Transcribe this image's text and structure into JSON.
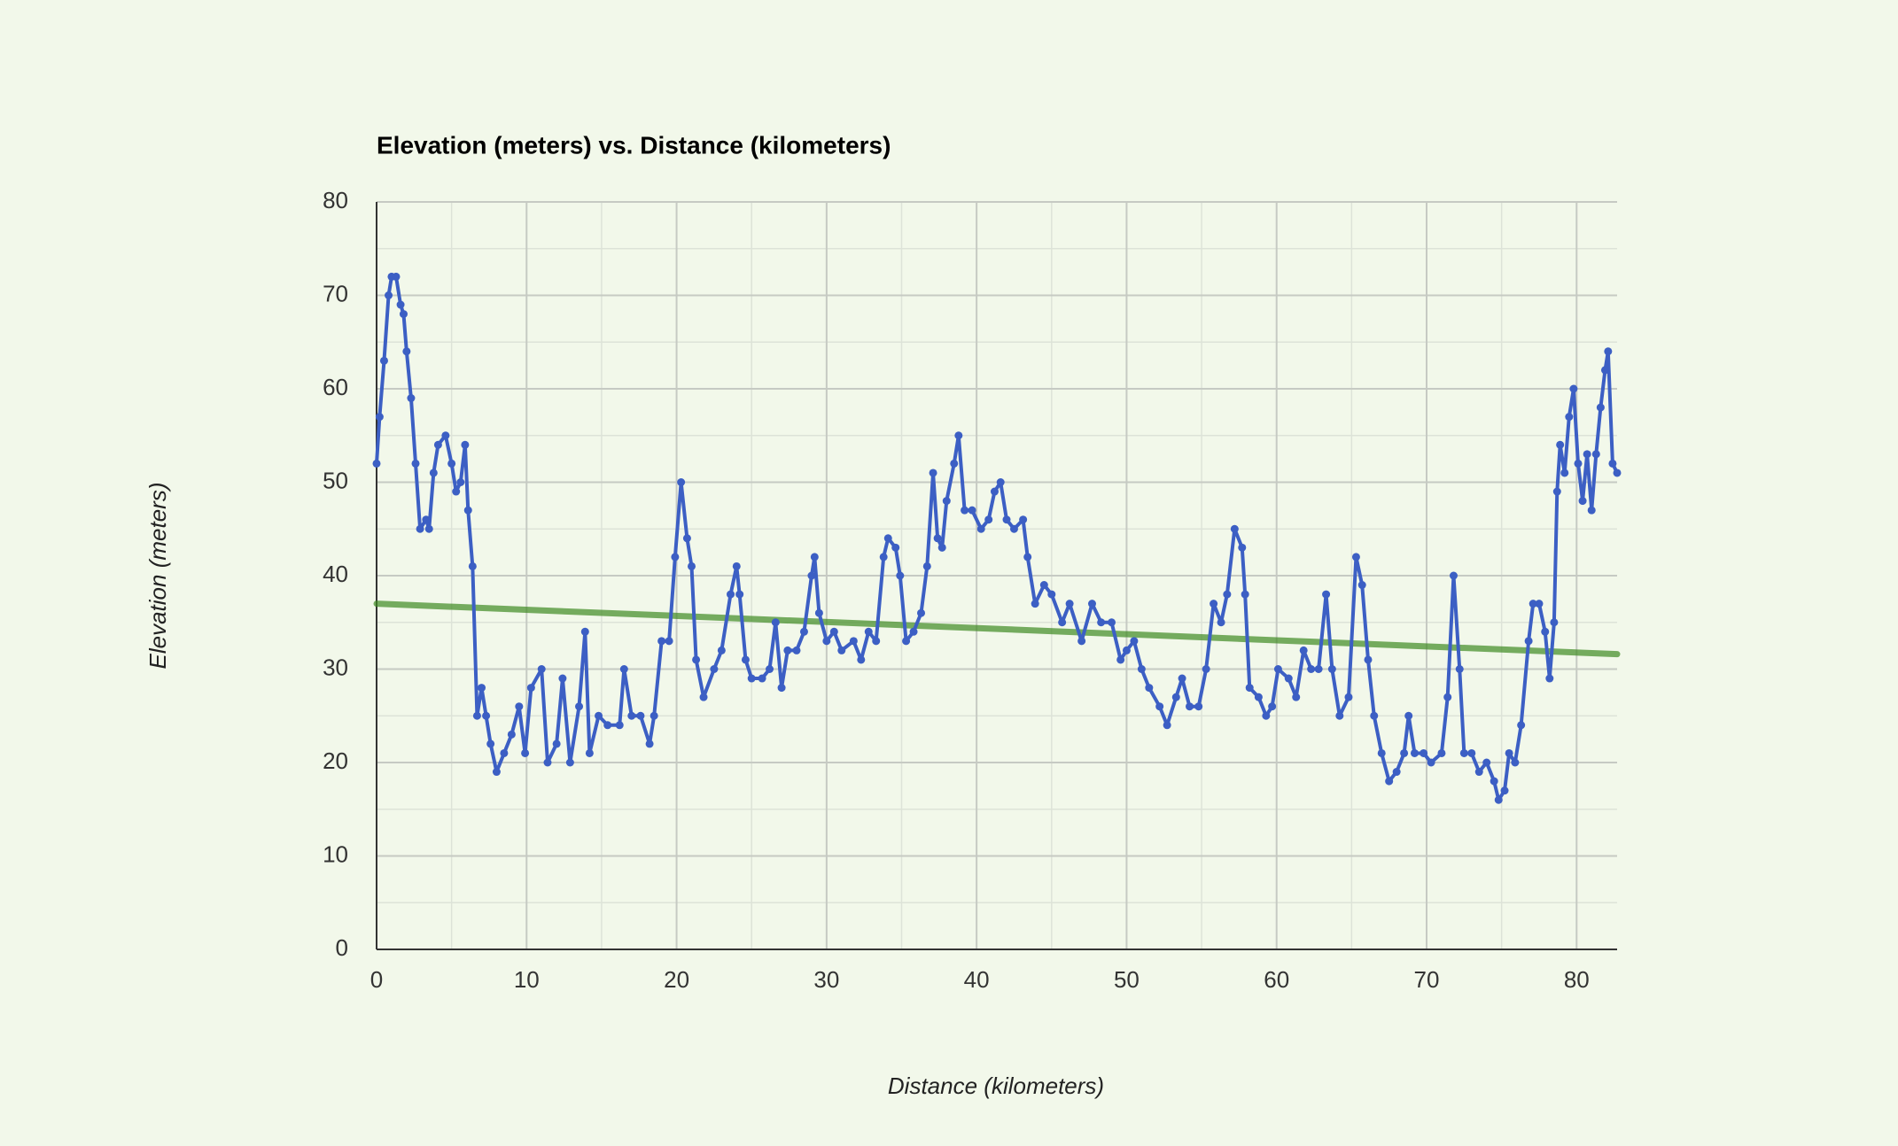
{
  "chart_data": {
    "type": "line",
    "title": "Elevation (meters) vs. Distance (kilometers)",
    "xlabel": "Distance (kilometers)",
    "ylabel": "Elevation (meters)",
    "xlim": [
      0,
      82.7
    ],
    "ylim": [
      0,
      80
    ],
    "xticks": [
      0,
      10,
      20,
      30,
      40,
      50,
      60,
      70,
      80
    ],
    "yticks": [
      0,
      10,
      20,
      30,
      40,
      50,
      60,
      70,
      80
    ],
    "x_minor_ticks": [
      5,
      15,
      25,
      35,
      45,
      55,
      65,
      75
    ],
    "y_minor_ticks": [
      5,
      15,
      25,
      35,
      45,
      55,
      65,
      75
    ],
    "grid": true,
    "series": [
      {
        "color": "#3c5fc4",
        "markers": true,
        "x": [
          0,
          0.2,
          0.5,
          0.8,
          1.0,
          1.3,
          1.6,
          1.8,
          2.0,
          2.3,
          2.6,
          2.9,
          3.3,
          3.5,
          3.8,
          4.1,
          4.6,
          5.0,
          5.3,
          5.6,
          5.9,
          6.1,
          6.4,
          6.7,
          7.0,
          7.3,
          7.6,
          8.0,
          8.5,
          9.0,
          9.5,
          9.9,
          10.3,
          11.0,
          11.4,
          12.0,
          12.4,
          12.9,
          13.5,
          13.9,
          14.2,
          14.8,
          15.4,
          16.2,
          16.5,
          17.0,
          17.6,
          18.2,
          18.5,
          19.0,
          19.5,
          19.9,
          20.3,
          20.7,
          21.0,
          21.3,
          21.8,
          22.5,
          23.0,
          23.6,
          24.0,
          24.2,
          24.6,
          25.0,
          25.7,
          26.2,
          26.6,
          27.0,
          27.4,
          28.0,
          28.5,
          29.0,
          29.2,
          29.5,
          30.0,
          30.5,
          31.0,
          31.8,
          32.3,
          32.8,
          33.3,
          33.8,
          34.1,
          34.6,
          34.9,
          35.3,
          35.8,
          36.3,
          36.7,
          37.1,
          37.4,
          37.7,
          38.0,
          38.5,
          38.8,
          39.2,
          39.7,
          40.3,
          40.8,
          41.2,
          41.6,
          42.0,
          42.5,
          43.1,
          43.4,
          43.9,
          44.5,
          45.0,
          45.7,
          46.2,
          47.0,
          47.7,
          48.3,
          49.0,
          49.6,
          50.0,
          50.5,
          51.0,
          51.5,
          52.2,
          52.7,
          53.3,
          53.7,
          54.2,
          54.8,
          55.3,
          55.8,
          56.3,
          56.7,
          57.2,
          57.7,
          57.9,
          58.2,
          58.8,
          59.3,
          59.7,
          60.1,
          60.8,
          61.3,
          61.8,
          62.3,
          62.8,
          63.3,
          63.7,
          64.2,
          64.8,
          65.3,
          65.7,
          66.1,
          66.5,
          67.0,
          67.5,
          68.0,
          68.5,
          68.8,
          69.2,
          69.8,
          70.3,
          71.0,
          71.4,
          71.8,
          72.2,
          72.5,
          73.0,
          73.5,
          74.0,
          74.5,
          74.8,
          75.2,
          75.5,
          75.9,
          76.3,
          76.8,
          77.1,
          77.5,
          77.9,
          78.2,
          78.5,
          78.7,
          78.9,
          79.2,
          79.5,
          79.8,
          80.1,
          80.4,
          80.7,
          81.0,
          81.3,
          81.6,
          81.9,
          82.1,
          82.4,
          82.7
        ],
        "values": [
          52,
          57,
          63,
          70,
          72,
          72,
          69,
          68,
          64,
          59,
          52,
          45,
          46,
          45,
          51,
          54,
          55,
          52,
          49,
          50,
          54,
          47,
          41,
          25,
          28,
          25,
          22,
          19,
          21,
          23,
          26,
          21,
          28,
          30,
          20,
          22,
          29,
          20,
          26,
          34,
          21,
          25,
          24,
          24,
          30,
          25,
          25,
          22,
          25,
          33,
          33,
          42,
          50,
          44,
          41,
          31,
          27,
          30,
          32,
          38,
          41,
          38,
          31,
          29,
          29,
          30,
          35,
          28,
          32,
          32,
          34,
          40,
          42,
          36,
          33,
          34,
          32,
          33,
          31,
          34,
          33,
          42,
          44,
          43,
          40,
          33,
          34,
          36,
          41,
          51,
          44,
          43,
          48,
          52,
          55,
          47,
          47,
          45,
          46,
          49,
          50,
          46,
          45,
          46,
          42,
          37,
          39,
          38,
          35,
          37,
          33,
          37,
          35,
          35,
          31,
          32,
          33,
          30,
          28,
          26,
          24,
          27,
          29,
          26,
          26,
          30,
          37,
          35,
          38,
          45,
          43,
          38,
          28,
          27,
          25,
          26,
          30,
          29,
          27,
          32,
          30,
          30,
          38,
          30,
          25,
          27,
          42,
          39,
          31,
          25,
          21,
          18,
          19,
          21,
          25,
          21,
          21,
          20,
          21,
          27,
          40,
          30,
          21,
          21,
          19,
          20,
          18,
          16,
          17,
          21,
          20,
          24,
          33,
          37,
          37,
          34,
          29,
          35,
          49,
          54,
          51,
          57,
          60,
          52,
          48,
          53,
          47,
          53,
          58,
          62,
          64,
          52,
          51
        ]
      },
      {
        "color": "#3f8a22",
        "markers": false,
        "trend": true,
        "x": [
          0,
          82.7
        ],
        "values": [
          37,
          31.6
        ]
      }
    ]
  }
}
